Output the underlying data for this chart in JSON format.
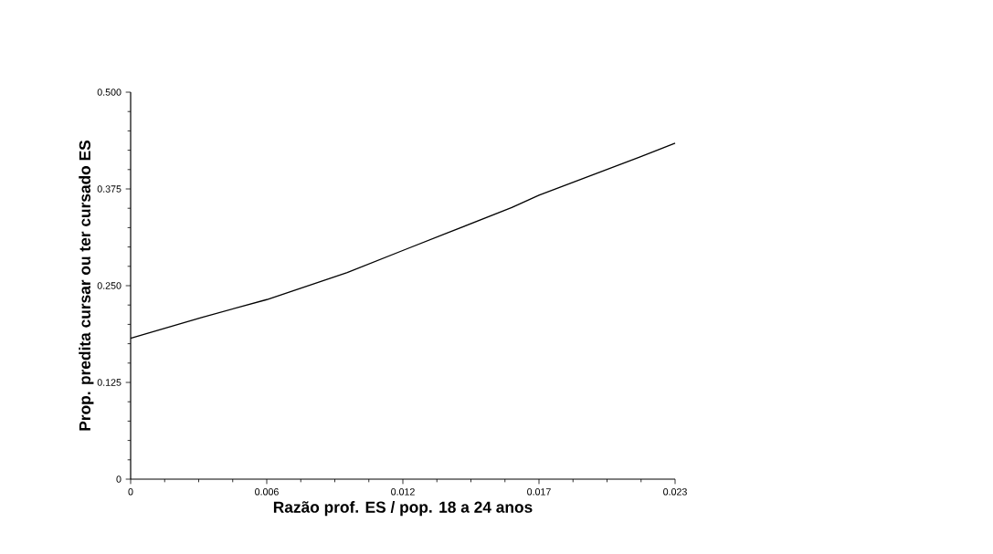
{
  "chart_data": {
    "type": "line",
    "xlabel": "Razão prof. ES / pop. 18 a 24 anos",
    "ylabel": "Prop. predita cursar ou ter cursado ES",
    "x": [
      0,
      0.003,
      0.00575,
      0.00915,
      0.01154,
      0.0161,
      0.01725,
      0.0215,
      0.023
    ],
    "values": [
      0.182,
      0.209,
      0.232,
      0.267,
      0.296,
      0.351,
      0.367,
      0.416,
      0.434
    ],
    "color": "#000000",
    "marker": "none",
    "line_style": "solid",
    "grid": false,
    "xlim": [
      0,
      0.023
    ],
    "ylim": [
      0,
      0.5
    ],
    "xticks": [
      0,
      {
        "value": 0.00575,
        "label": "0.006"
      },
      {
        "value": 0.0115,
        "label": "0.012"
      },
      {
        "value": 0.01725,
        "label": "0.017"
      },
      0.023
    ],
    "yticks": [
      0,
      0.125,
      {
        "value": 0.25,
        "label": "0.250"
      },
      0.375,
      {
        "value": 0.5,
        "label": "0.500"
      }
    ]
  }
}
